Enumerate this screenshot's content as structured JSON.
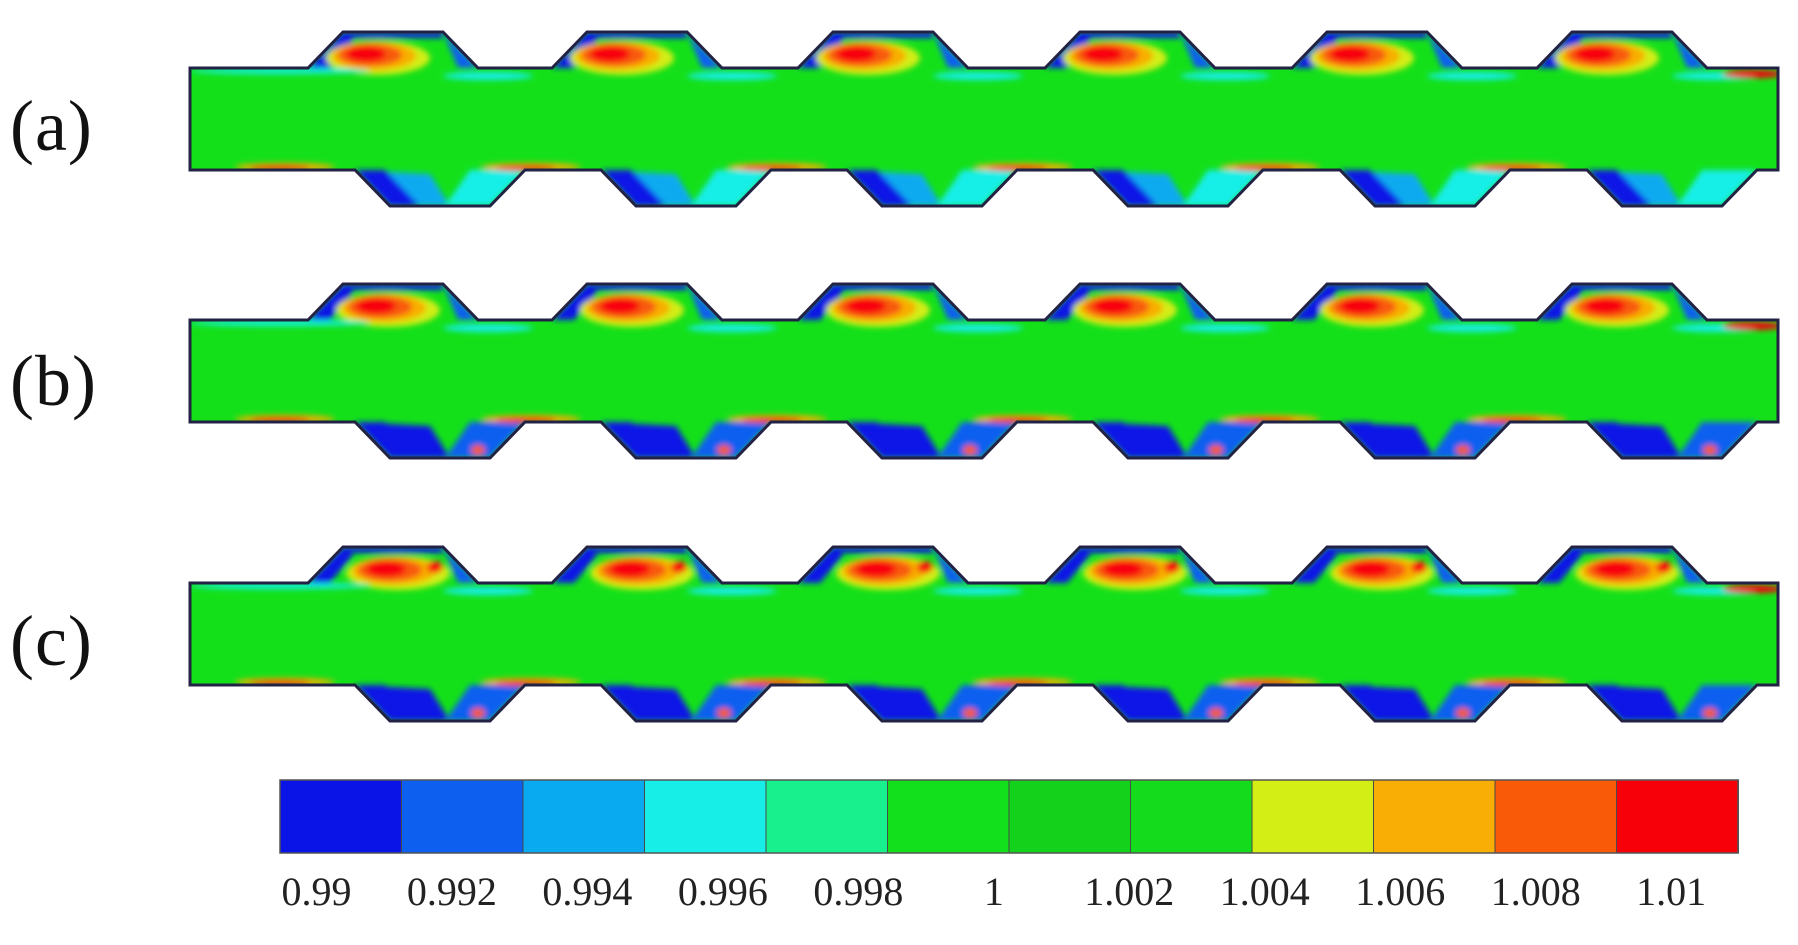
{
  "panels": [
    {
      "label": "(a)"
    },
    {
      "label": "(b)"
    },
    {
      "label": "(c)"
    }
  ],
  "colorbar": {
    "ticks": [
      "0.99",
      "0.992",
      "0.994",
      "0.996",
      "0.998",
      "1",
      "1.002",
      "1.004",
      "1.006",
      "1.008",
      "1.01"
    ],
    "bands": [
      "#0a14e6",
      "#0d5ff0",
      "#0aaaf0",
      "#17eee8",
      "#18f08e",
      "#12e01c",
      "#14d21c",
      "#14dc1c",
      "#d2ee14",
      "#f8ae04",
      "#f85a08",
      "#f8000a"
    ]
  },
  "colors": {
    "field": "#14e01a",
    "low": "#0a14e6",
    "mid_low": "#0d5ff0",
    "light_blue": "#0aaaf0",
    "cyan": "#17eee8",
    "yellow": "#d2ee14",
    "orange": "#f8ae04",
    "dark_orange": "#f85a08",
    "red": "#f8000a",
    "wall": "#222244"
  }
}
